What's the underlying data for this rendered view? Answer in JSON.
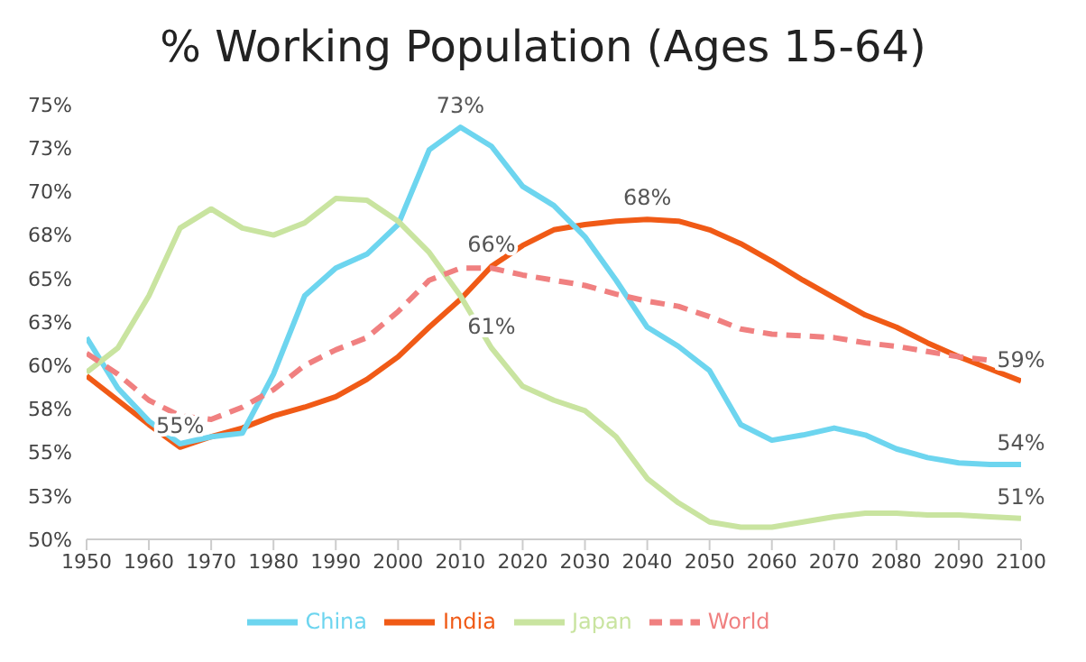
{
  "chart_data": {
    "type": "line",
    "title": "% Working Population (Ages 15-64)",
    "x": [
      1950,
      1955,
      1960,
      1965,
      1970,
      1975,
      1980,
      1985,
      1990,
      1995,
      2000,
      2005,
      2010,
      2015,
      2020,
      2025,
      2030,
      2035,
      2040,
      2045,
      2050,
      2055,
      2060,
      2065,
      2070,
      2075,
      2080,
      2085,
      2090,
      2095,
      2100
    ],
    "series": [
      {
        "name": "India",
        "color": "#f05a16",
        "line_style": "solid",
        "values": [
          59.4,
          58.0,
          56.6,
          55.3,
          55.9,
          56.4,
          57.1,
          57.6,
          58.2,
          59.2,
          60.5,
          62.2,
          63.8,
          65.7,
          66.9,
          67.8,
          68.1,
          68.3,
          68.4,
          68.3,
          67.8,
          67.0,
          66.0,
          64.9,
          63.9,
          62.9,
          62.2,
          61.3,
          60.5,
          59.8,
          59.1
        ]
      },
      {
        "name": "China",
        "color": "#6dd5ef",
        "line_style": "solid",
        "values": [
          61.6,
          58.7,
          56.8,
          55.5,
          55.9,
          56.1,
          59.5,
          64.0,
          65.6,
          66.4,
          68.1,
          72.4,
          73.7,
          72.6,
          70.3,
          69.2,
          67.4,
          64.9,
          62.2,
          61.1,
          59.7,
          56.6,
          55.7,
          56.0,
          56.4,
          56.0,
          55.2,
          54.7,
          54.4,
          54.3,
          54.3
        ]
      },
      {
        "name": "Japan",
        "color": "#c9e4a0",
        "line_style": "solid",
        "values": [
          59.6,
          61.0,
          64.0,
          67.9,
          69.0,
          67.9,
          67.5,
          68.2,
          69.6,
          69.5,
          68.3,
          66.5,
          64.0,
          61.0,
          58.8,
          58.0,
          57.4,
          55.9,
          53.5,
          52.1,
          51.0,
          50.7,
          50.7,
          51.0,
          51.3,
          51.5,
          51.5,
          51.4,
          51.4,
          51.3,
          51.2
        ]
      },
      {
        "name": "World",
        "color": "#f08080",
        "line_style": "dashed",
        "values": [
          60.7,
          59.5,
          58.0,
          57.1,
          56.9,
          57.6,
          58.6,
          60.0,
          60.9,
          61.6,
          63.1,
          64.9,
          65.6,
          65.6,
          65.2,
          64.9,
          64.6,
          64.1,
          63.7,
          63.4,
          62.8,
          62.1,
          61.8,
          61.7,
          61.6,
          61.3,
          61.1,
          60.8,
          60.5,
          60.3,
          60.0
        ]
      }
    ],
    "xlim": [
      1950,
      2100
    ],
    "xticks": [
      1950,
      1960,
      1970,
      1980,
      1990,
      2000,
      2010,
      2020,
      2030,
      2040,
      2050,
      2060,
      2070,
      2080,
      2090,
      2100
    ],
    "ylim": [
      50,
      75
    ],
    "yticks": [
      {
        "value": 50,
        "label": "50%"
      },
      {
        "value": 52.5,
        "label": "53%"
      },
      {
        "value": 55,
        "label": "55%"
      },
      {
        "value": 57.5,
        "label": "58%"
      },
      {
        "value": 60,
        "label": "60%"
      },
      {
        "value": 62.5,
        "label": "63%"
      },
      {
        "value": 65,
        "label": "65%"
      },
      {
        "value": 67.5,
        "label": "68%"
      },
      {
        "value": 70,
        "label": "70%"
      },
      {
        "value": 72.5,
        "label": "73%"
      },
      {
        "value": 75,
        "label": "75%"
      }
    ],
    "annotations": [
      {
        "text": "55%",
        "x": 1965,
        "y": 55.3
      },
      {
        "text": "66%",
        "x": 2015,
        "y": 65.7
      },
      {
        "text": "68%",
        "x": 2040,
        "y": 68.4
      },
      {
        "text": "59%",
        "x": 2100,
        "y": 59.1
      },
      {
        "text": "73%",
        "x": 2010,
        "y": 73.7
      },
      {
        "text": "54%",
        "x": 2100,
        "y": 54.3
      },
      {
        "text": "61%",
        "x": 2015,
        "y": 61.0
      },
      {
        "text": "51%",
        "x": 2100,
        "y": 51.2
      }
    ],
    "grid": false,
    "legend": "bottom",
    "marker": "none"
  }
}
